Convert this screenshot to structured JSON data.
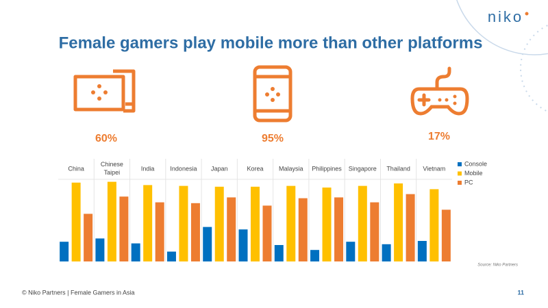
{
  "logo": "niko",
  "title": "Female gamers play mobile more than other platforms",
  "platform_stats": [
    "60%",
    "95%",
    "17%"
  ],
  "chart_data": {
    "type": "bar",
    "categories": [
      "China",
      "Chinese Taipei",
      "India",
      "Indonesia",
      "Japan",
      "Korea",
      "Malaysia",
      "Philippines",
      "Singapore",
      "Thailand",
      "Vietnam"
    ],
    "series": [
      {
        "name": "Console",
        "color": "#0070c0",
        "values": [
          24,
          28,
          22,
          12,
          42,
          39,
          20,
          14,
          24,
          21,
          25
        ]
      },
      {
        "name": "Mobile",
        "color": "#ffc000",
        "values": [
          96,
          97,
          93,
          92,
          91,
          91,
          92,
          90,
          92,
          95,
          88
        ]
      },
      {
        "name": "PC",
        "color": "#ed7d31",
        "values": [
          58,
          79,
          72,
          71,
          78,
          68,
          77,
          78,
          72,
          82,
          63
        ]
      }
    ],
    "ylim": [
      0,
      100
    ]
  },
  "source": "Source: Niko Partners",
  "footer": "© Niko Partners | Female Gamers in Asia",
  "page_number": "11"
}
